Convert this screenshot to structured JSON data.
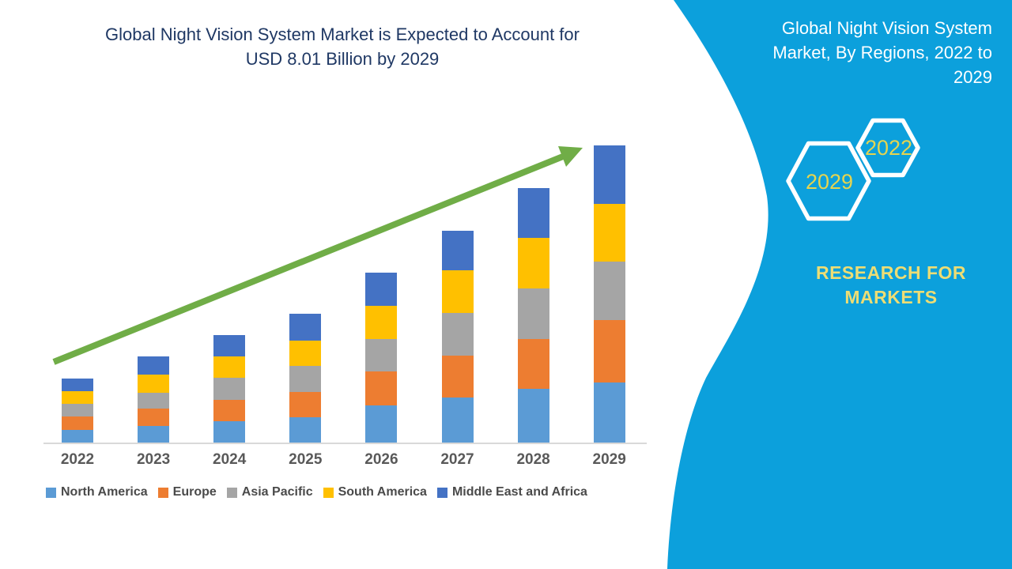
{
  "main_chart": {
    "title_line1": "Global Night Vision System Market is Expected to Account for",
    "title_line2": "USD 8.01 Billion by 2029"
  },
  "chart_data": {
    "type": "bar",
    "stacked": true,
    "title": "Global Night Vision System Market is Expected to Account for USD 8.01 Billion by 2029",
    "unit": "USD Billion",
    "xlabel": "",
    "ylabel": "",
    "ylim": [
      0,
      8.2
    ],
    "grid": false,
    "legend_position": "bottom",
    "categories": [
      "2022",
      "2023",
      "2024",
      "2025",
      "2026",
      "2027",
      "2028",
      "2029"
    ],
    "series": [
      {
        "name": "North America",
        "color": "#5B9BD5",
        "values": [
          0.35,
          0.45,
          0.58,
          0.69,
          1.0,
          1.21,
          1.46,
          1.63
        ]
      },
      {
        "name": "Europe",
        "color": "#ED7D31",
        "values": [
          0.35,
          0.46,
          0.58,
          0.68,
          0.92,
          1.14,
          1.33,
          1.68
        ]
      },
      {
        "name": "Asia Pacific",
        "color": "#A5A5A5",
        "values": [
          0.34,
          0.44,
          0.58,
          0.69,
          0.87,
          1.15,
          1.37,
          1.57
        ]
      },
      {
        "name": "South America",
        "color": "#FFC000",
        "values": [
          0.35,
          0.48,
          0.58,
          0.7,
          0.91,
          1.15,
          1.36,
          1.57
        ]
      },
      {
        "name": "Middle East and Africa",
        "color": "#4472C4",
        "values": [
          0.34,
          0.49,
          0.58,
          0.71,
          0.88,
          1.06,
          1.34,
          1.56
        ]
      }
    ],
    "totals": [
      1.73,
      2.32,
      2.9,
      3.47,
      4.58,
      5.71,
      6.86,
      8.01
    ],
    "annotations": [
      "green upward growth trend arrow from 2022 bar to 2029 bar"
    ]
  },
  "right_panel": {
    "title": "Global Night Vision System Market, By Regions, 2022 to 2029",
    "hexagon_top_year": "2022",
    "hexagon_bottom_year": "2029",
    "brand_line1": "RESEARCH FOR",
    "brand_line2": "MARKETS"
  },
  "colors": {
    "panel_blue": "#0CA0DC",
    "title_navy": "#1F3864",
    "arrow_green": "#70AD47",
    "axis_text": "#595959",
    "legend_text": "#4A4A4A",
    "axis_line": "#D9D9D9",
    "hexagon_year_text": "#E5D44F",
    "brand_text": "#EDDD74"
  }
}
